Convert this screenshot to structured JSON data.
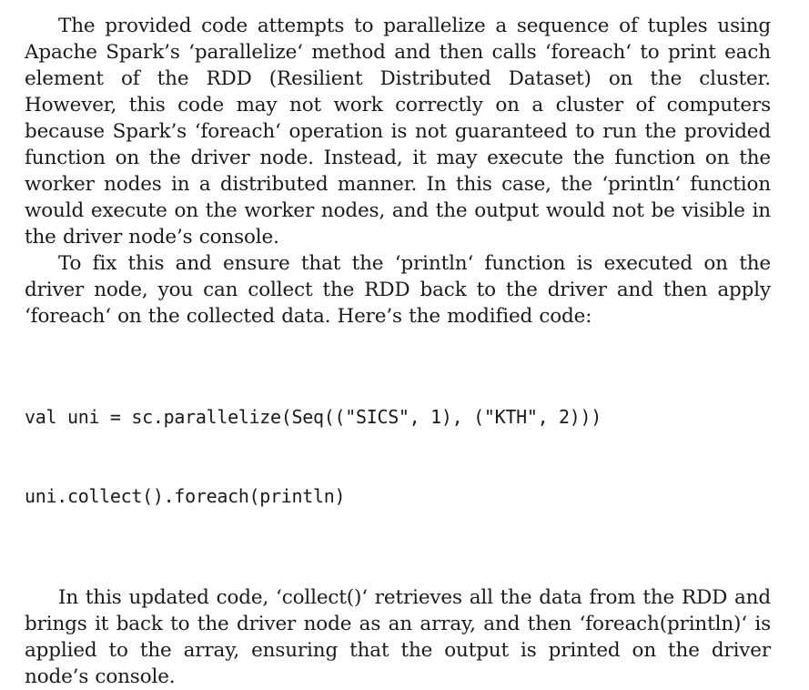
{
  "paragraphs": [
    "The provided code attempts to parallelize a sequence of tuples using Apache Spark’s ‘parallelize‘ method and then calls ‘foreach‘ to print each element of the RDD (Resilient Distributed Dataset) on the cluster. However, this code may not work correctly on a cluster of computers because Spark’s ‘foreach‘ operation is not guaranteed to run the provided function on the driver node. Instead, it may execute the function on the worker nodes in a distributed manner. In this case, the ‘println‘ function would execute on the worker nodes, and the output would not be visible in the driver node’s console.",
    "To fix this and ensure that the ‘println‘ function is executed on the driver node, you can collect the RDD back to the driver and then apply ‘foreach‘ on the collected data. Here’s the modified code:",
    "In this updated code, ‘collect()‘ retrieves all the data from the RDD and brings it back to the driver node as an array, and then ‘foreach(println)‘ is applied to the array, ensuring that the output is printed on the driver node’s console."
  ],
  "code_lines": [
    "val uni = sc.parallelize(Seq((\"SICS\", 1), (\"KTH\", 2)))",
    "uni.collect().foreach(println)"
  ]
}
